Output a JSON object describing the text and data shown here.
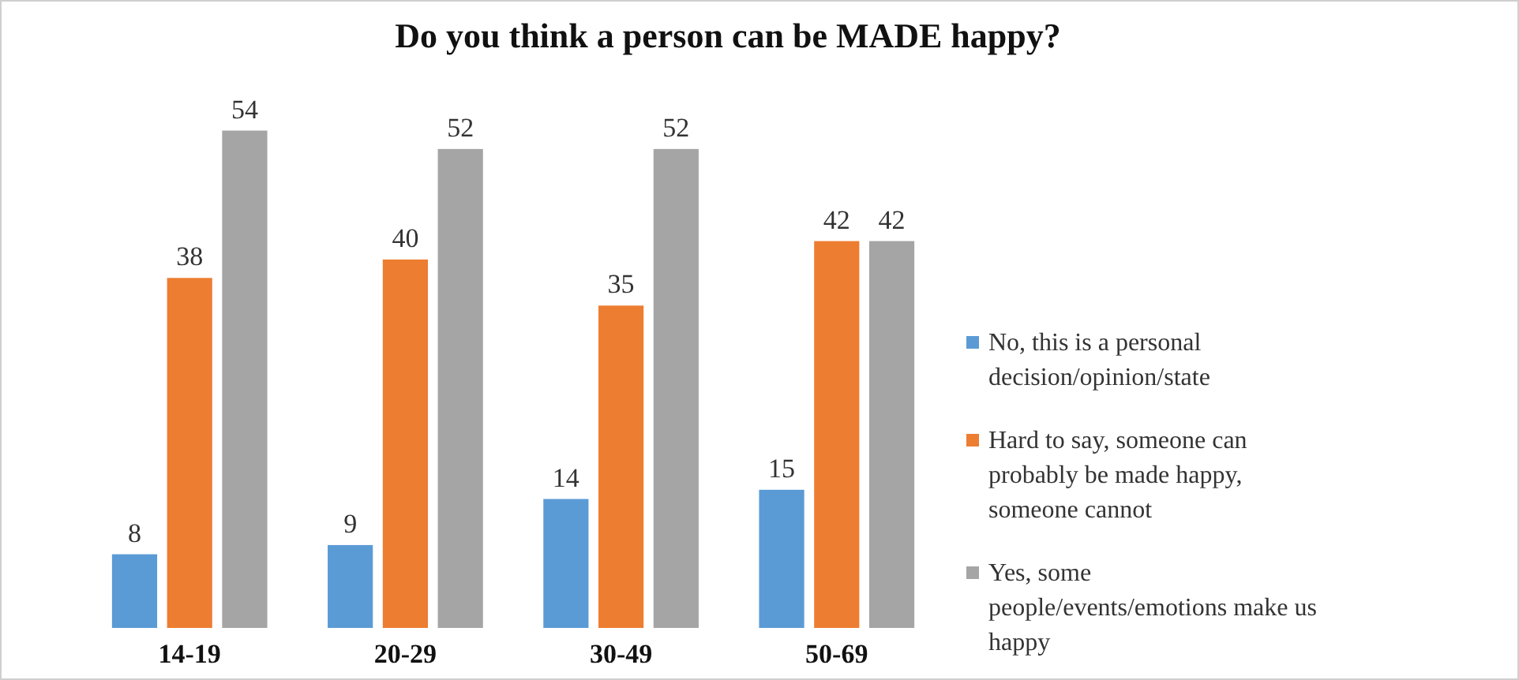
{
  "chart_data": {
    "type": "bar",
    "title": "Do you think a person can be MADE happy?",
    "categories": [
      "14-19",
      "20-29",
      "30-49",
      "50-69"
    ],
    "series": [
      {
        "name": "No, this is a personal decision/opinion/state",
        "color": "#5b9bd5",
        "values": [
          8,
          9,
          14,
          15
        ]
      },
      {
        "name": "Hard to say, someone can probably be made happy, someone cannot",
        "color": "#ed7d31",
        "values": [
          38,
          40,
          35,
          42
        ]
      },
      {
        "name": "Yes, some people/events/emotions make us happy",
        "color": "#a5a5a5",
        "values": [
          54,
          52,
          52,
          42
        ]
      }
    ],
    "data_labels": true,
    "legend": "right"
  }
}
